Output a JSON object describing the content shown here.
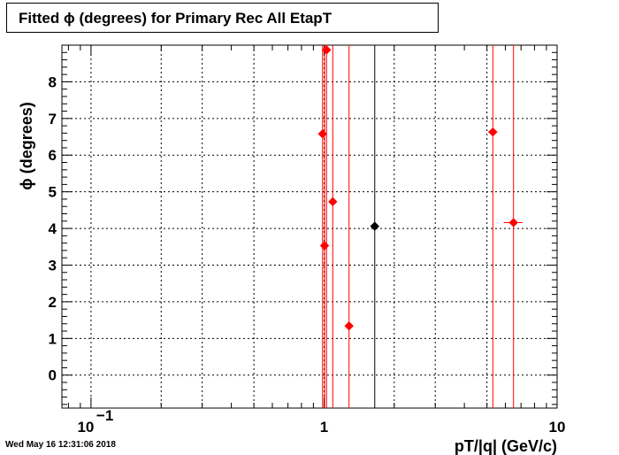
{
  "title": "Fitted ϕ (degrees) for Primary Rec All EtapT",
  "footer_timestamp": "Wed May 16 12:31:06 2018",
  "chart_data": {
    "type": "scatter",
    "title": "Fitted ϕ (degrees) for Primary Rec All EtapT",
    "xlabel": "pT/|q| (GeV/c)",
    "ylabel": "ϕ (degrees)",
    "x_scale": "log",
    "xlim": [
      0.075,
      10
    ],
    "ylim": [
      -0.9,
      9.0
    ],
    "grid": true,
    "x_ticks": [
      {
        "value": 0.1,
        "label": "10",
        "sup": "−1"
      },
      {
        "value": 1,
        "label": "1",
        "sup": ""
      },
      {
        "value": 10,
        "label": "10",
        "sup": ""
      }
    ],
    "y_ticks": [
      0,
      1,
      2,
      3,
      4,
      5,
      6,
      7,
      8
    ],
    "series": [
      {
        "color": "#ff0000",
        "points": [
          {
            "x": 0.985,
            "y": 6.58,
            "xerr": 0.01
          },
          {
            "x": 1.005,
            "y": 3.53,
            "xerr": 0.01
          },
          {
            "x": 1.025,
            "y": 8.87,
            "xerr": 0.01
          },
          {
            "x": 1.09,
            "y": 4.73,
            "xerr": 0.01
          },
          {
            "x": 1.28,
            "y": 1.34,
            "xerr": 0.01
          },
          {
            "x": 5.3,
            "y": 6.63,
            "xerr": 0.25
          },
          {
            "x": 6.5,
            "y": 4.16,
            "xerr": 0.6
          }
        ]
      },
      {
        "color": "#000000",
        "points": [
          {
            "x": 1.65,
            "y": 4.06,
            "xerr": 0.0
          }
        ]
      }
    ]
  }
}
